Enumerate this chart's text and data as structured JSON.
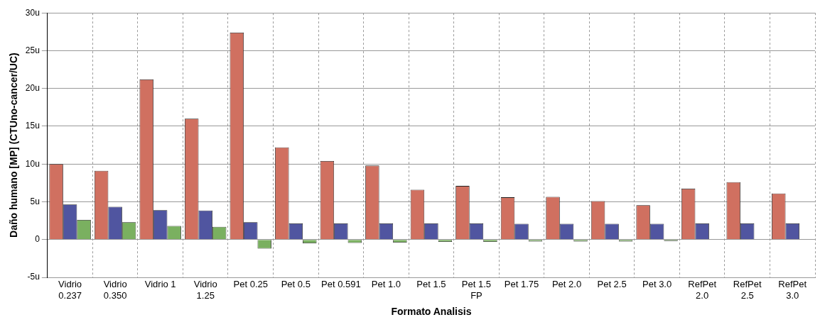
{
  "chart_data": {
    "type": "bar",
    "xlabel": "Formato Analisis",
    "ylabel": "Daño humano [MP] (CTUno-cancer/UC)",
    "categories": [
      "Vidrio 0.237",
      "Vidrio 0.350",
      "Vidrio 1",
      "Vidrio 1.25",
      "Pet 0.25",
      "Pet 0.5",
      "Pet 0.591",
      "Pet 1.0",
      "Pet 1.5",
      "Pet 1.5 FP",
      "Pet 1.75",
      "Pet 2.0",
      "Pet 2.5",
      "Pet 3.0",
      "RefPet 2.0",
      "RefPet 2.5",
      "RefPet 3.0"
    ],
    "series": [
      {
        "color": "#d07060",
        "values": [
          10.0,
          9.1,
          21.2,
          16.0,
          27.4,
          12.2,
          10.4,
          9.8,
          6.6,
          7.1,
          5.6,
          5.65,
          5.1,
          4.55,
          6.75,
          7.6,
          6.1
        ]
      },
      {
        "color": "#5055a0",
        "values": [
          4.65,
          4.35,
          3.9,
          3.85,
          2.3,
          2.15,
          2.15,
          2.15,
          2.15,
          2.15,
          2.1,
          2.1,
          2.1,
          2.1,
          2.15,
          2.15,
          2.15
        ]
      },
      {
        "color": "#7ab060",
        "values": [
          2.6,
          2.3,
          1.8,
          1.7,
          -1.2,
          -0.5,
          -0.45,
          -0.4,
          -0.3,
          -0.3,
          -0.25,
          -0.25,
          -0.25,
          -0.2,
          0.05,
          0.05,
          0.05
        ]
      }
    ],
    "ylim": [
      -5,
      30
    ],
    "yticks": [
      {
        "value": -5,
        "label": "-5u"
      },
      0,
      {
        "value": 5,
        "label": "5u"
      },
      {
        "value": 10,
        "label": "10u"
      },
      {
        "value": 15,
        "label": "15u"
      },
      {
        "value": 20,
        "label": "20u"
      },
      {
        "value": 25,
        "label": "25u"
      },
      {
        "value": 30,
        "label": "30u"
      }
    ],
    "grid": true,
    "legend": false
  }
}
